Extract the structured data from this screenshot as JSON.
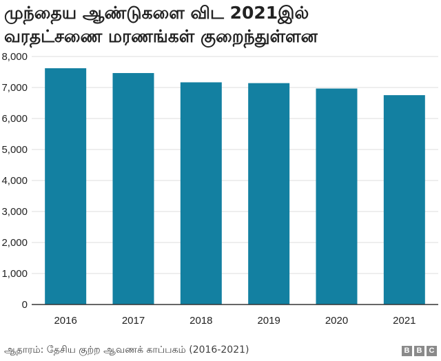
{
  "title": {
    "line1": "முந்தைய ஆண்டுகளை விட 2021இல்",
    "line2": "வரதட்சணை மரணங்கள் குறைந்துள்ளன"
  },
  "source": "ஆதாரம்: தேசிய குற்ற ஆவணக் காப்பகம் (2016-2021)",
  "logo": [
    "B",
    "B",
    "C"
  ],
  "colors": {
    "bar": "#1380A1",
    "grid": "#dddddd",
    "axis": "#333333"
  },
  "chart_data": {
    "type": "bar",
    "title": "முந்தைய ஆண்டுகளை விட 2021இல் வரதட்சணை மரணங்கள் குறைந்துள்ளன",
    "xlabel": "",
    "ylabel": "",
    "categories": [
      "2016",
      "2017",
      "2018",
      "2019",
      "2020",
      "2021"
    ],
    "values": [
      7621,
      7466,
      7167,
      7141,
      6966,
      6753
    ],
    "ylim": [
      0,
      8000
    ],
    "yticks": [
      0,
      1000,
      2000,
      3000,
      4000,
      5000,
      6000,
      7000,
      8000
    ],
    "ytick_labels": [
      "0",
      "1,000",
      "2,000",
      "3,000",
      "4,000",
      "5,000",
      "6,000",
      "7,000",
      "8,000"
    ],
    "grid": "horizontal",
    "legend": "none"
  }
}
